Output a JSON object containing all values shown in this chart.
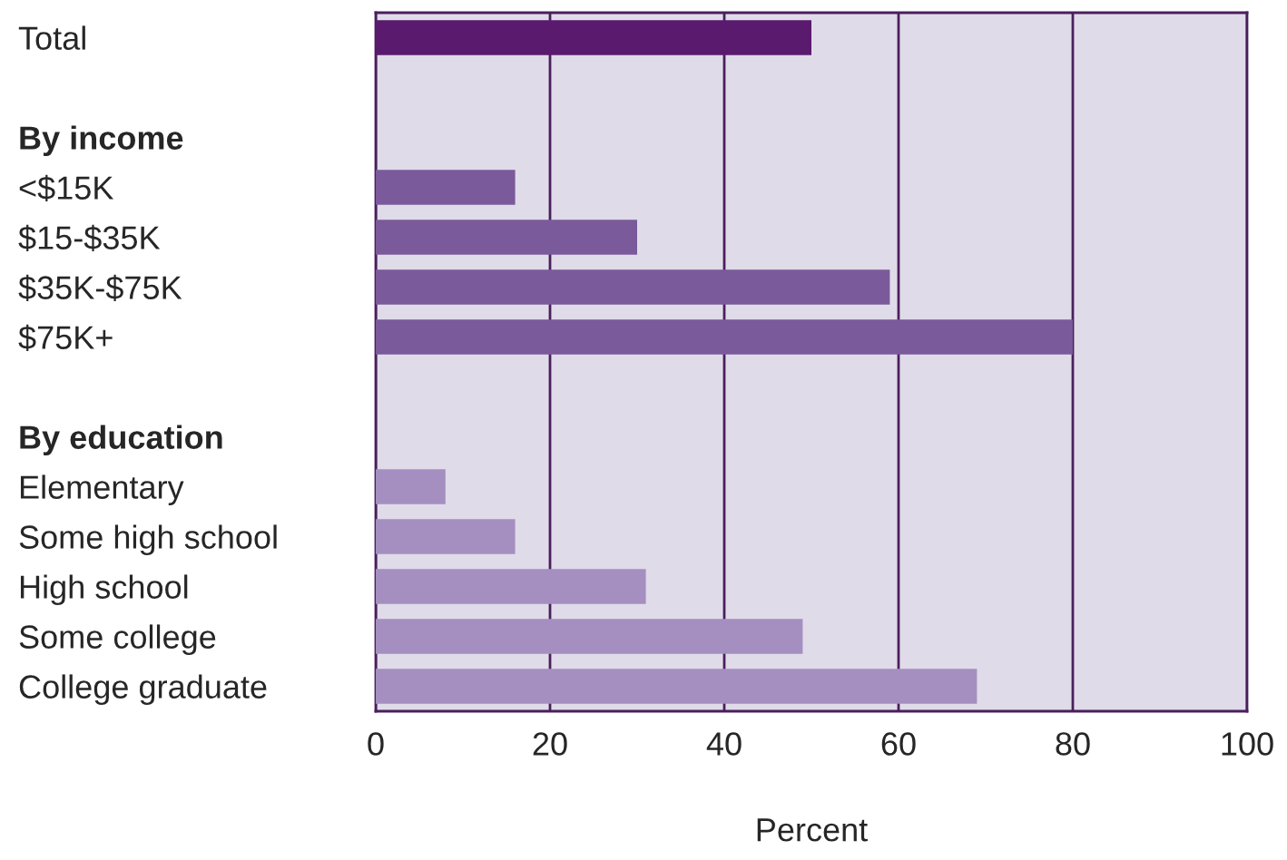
{
  "chart_data": {
    "type": "bar",
    "orientation": "horizontal",
    "xlabel": "Percent",
    "categories": [
      "Total",
      null,
      "By income",
      "<$15K",
      "$15-$35K",
      "$35K-$75K",
      "$75K+",
      null,
      "By education",
      "Elementary",
      "Some high school",
      "High school",
      "Some college",
      "College graduate"
    ],
    "values": [
      50,
      null,
      null,
      16,
      30,
      59,
      80,
      null,
      null,
      8,
      16,
      31,
      49,
      69
    ],
    "colors": [
      "#5a1a6e",
      null,
      null,
      "#7a5a9a",
      "#7a5a9a",
      "#7a5a9a",
      "#7a5a9a",
      null,
      null,
      "#a58fc0",
      "#a58fc0",
      "#a58fc0",
      "#a58fc0",
      "#a58fc0"
    ],
    "xlim": [
      0,
      100
    ],
    "xticks": [
      0,
      20,
      40,
      60,
      80,
      100
    ],
    "grid": "x",
    "legend": false
  }
}
